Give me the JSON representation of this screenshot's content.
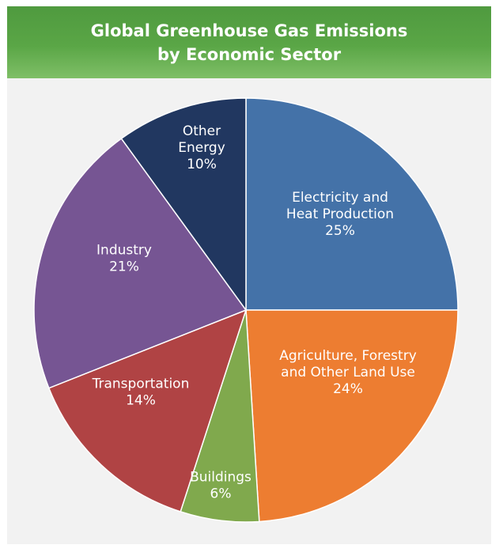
{
  "title": {
    "line1": "Global Greenhouse Gas Emissions",
    "line2": "by Economic Sector"
  },
  "chart_data": {
    "type": "pie",
    "title": "Global Greenhouse Gas Emissions by Economic Sector",
    "start": "12 o'clock",
    "direction": "clockwise",
    "slices": [
      {
        "label": "Electricity and Heat Production",
        "lines": [
          "Electricity and",
          "Heat Production"
        ],
        "value": 25,
        "pct_label": "25%",
        "color": "#4472a8"
      },
      {
        "label": "Agriculture, Forestry and Other Land Use",
        "lines": [
          "Agriculture, Forestry",
          "and Other Land Use"
        ],
        "value": 24,
        "pct_label": "24%",
        "color": "#ed7d31"
      },
      {
        "label": "Buildings",
        "lines": [
          "Buildings"
        ],
        "value": 6,
        "pct_label": "6%",
        "color": "#80a94d"
      },
      {
        "label": "Transportation",
        "lines": [
          "Transportation"
        ],
        "value": 14,
        "pct_label": "14%",
        "color": "#b04344"
      },
      {
        "label": "Industry",
        "lines": [
          "Industry"
        ],
        "value": 21,
        "pct_label": "21%",
        "color": "#765593"
      },
      {
        "label": "Other Energy",
        "lines": [
          "Other",
          "Energy"
        ],
        "value": 10,
        "pct_label": "10%",
        "color": "#213760"
      }
    ]
  }
}
